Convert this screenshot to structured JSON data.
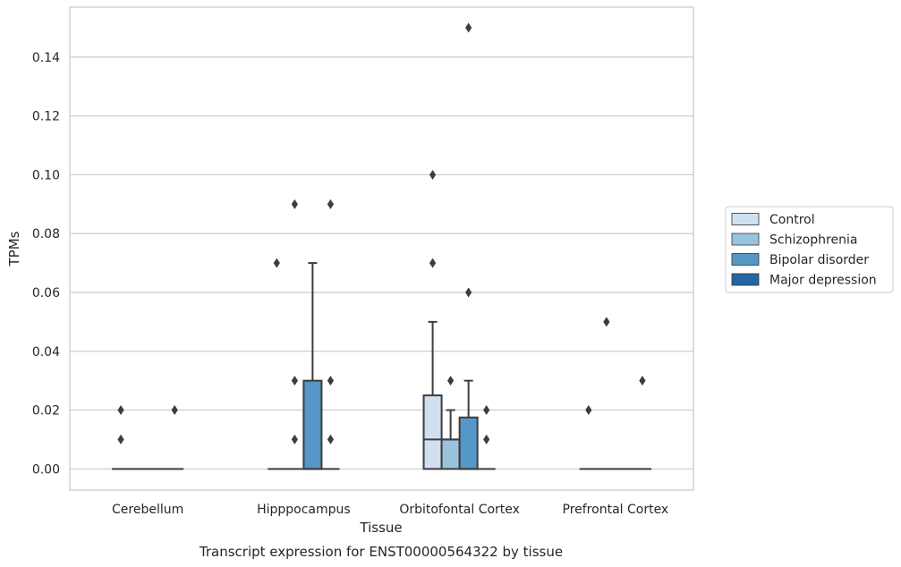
{
  "caption": "Transcript expression for ENST00000564322 by tissue",
  "chart_data": {
    "type": "box",
    "xlabel": "Tissue",
    "ylabel": "TPMs",
    "ylim": [
      -0.0072,
      0.157
    ],
    "yticks": [
      "0.00",
      "0.02",
      "0.04",
      "0.06",
      "0.08",
      "0.10",
      "0.12",
      "0.14"
    ],
    "grid": "horizontal",
    "legend_position": "right",
    "categories": [
      "Cerebellum",
      "Hipppocampus",
      "Orbitofontal Cortex",
      "Prefrontal Cortex"
    ],
    "series": [
      {
        "name": "Control",
        "color": "#d0e0ef"
      },
      {
        "name": "Schizophrenia",
        "color": "#9ac4de"
      },
      {
        "name": "Bipolar disorder",
        "color": "#5597c6"
      },
      {
        "name": "Major depression",
        "color": "#2465a5"
      }
    ],
    "boxes": [
      {
        "category": 0,
        "series": 0,
        "q1": 0,
        "median": 0,
        "q3": 0,
        "whisker_low": 0,
        "whisker_high": 0,
        "outliers": [
          0.01,
          0.02
        ]
      },
      {
        "category": 0,
        "series": 1,
        "q1": 0,
        "median": 0,
        "q3": 0,
        "whisker_low": 0,
        "whisker_high": 0,
        "outliers": []
      },
      {
        "category": 0,
        "series": 2,
        "q1": 0,
        "median": 0,
        "q3": 0,
        "whisker_low": 0,
        "whisker_high": 0,
        "outliers": []
      },
      {
        "category": 0,
        "series": 3,
        "q1": 0,
        "median": 0,
        "q3": 0,
        "whisker_low": 0,
        "whisker_high": 0,
        "outliers": [
          0.02
        ]
      },
      {
        "category": 1,
        "series": 0,
        "q1": 0,
        "median": 0,
        "q3": 0,
        "whisker_low": 0,
        "whisker_high": 0,
        "outliers": [
          0.07
        ]
      },
      {
        "category": 1,
        "series": 1,
        "q1": 0,
        "median": 0,
        "q3": 0,
        "whisker_low": 0,
        "whisker_high": 0,
        "outliers": [
          0.01,
          0.03,
          0.09
        ]
      },
      {
        "category": 1,
        "series": 2,
        "q1": 0,
        "median": 0,
        "q3": 0.03,
        "whisker_low": 0,
        "whisker_high": 0.07,
        "outliers": []
      },
      {
        "category": 1,
        "series": 3,
        "q1": 0,
        "median": 0,
        "q3": 0,
        "whisker_low": 0,
        "whisker_high": 0,
        "outliers": [
          0.01,
          0.03,
          0.09
        ]
      },
      {
        "category": 2,
        "series": 0,
        "q1": 0,
        "median": 0.01,
        "q3": 0.025,
        "whisker_low": 0,
        "whisker_high": 0.05,
        "outliers": [
          0.07,
          0.1
        ]
      },
      {
        "category": 2,
        "series": 1,
        "q1": 0,
        "median": 0.01,
        "q3": 0.01,
        "whisker_low": 0,
        "whisker_high": 0.02,
        "outliers": [
          0.03
        ]
      },
      {
        "category": 2,
        "series": 2,
        "q1": 0,
        "median": 0,
        "q3": 0.0175,
        "whisker_low": 0,
        "whisker_high": 0.03,
        "outliers": [
          0.06,
          0.15
        ]
      },
      {
        "category": 2,
        "series": 3,
        "q1": 0,
        "median": 0,
        "q3": 0,
        "whisker_low": 0,
        "whisker_high": 0,
        "outliers": [
          0.01,
          0.02
        ]
      },
      {
        "category": 3,
        "series": 0,
        "q1": 0,
        "median": 0,
        "q3": 0,
        "whisker_low": 0,
        "whisker_high": 0,
        "outliers": [
          0.02
        ]
      },
      {
        "category": 3,
        "series": 1,
        "q1": 0,
        "median": 0,
        "q3": 0,
        "whisker_low": 0,
        "whisker_high": 0,
        "outliers": [
          0.05
        ]
      },
      {
        "category": 3,
        "series": 2,
        "q1": 0,
        "median": 0,
        "q3": 0,
        "whisker_low": 0,
        "whisker_high": 0,
        "outliers": []
      },
      {
        "category": 3,
        "series": 3,
        "q1": 0,
        "median": 0,
        "q3": 0,
        "whisker_low": 0,
        "whisker_high": 0,
        "outliers": [
          0.03
        ]
      }
    ]
  }
}
